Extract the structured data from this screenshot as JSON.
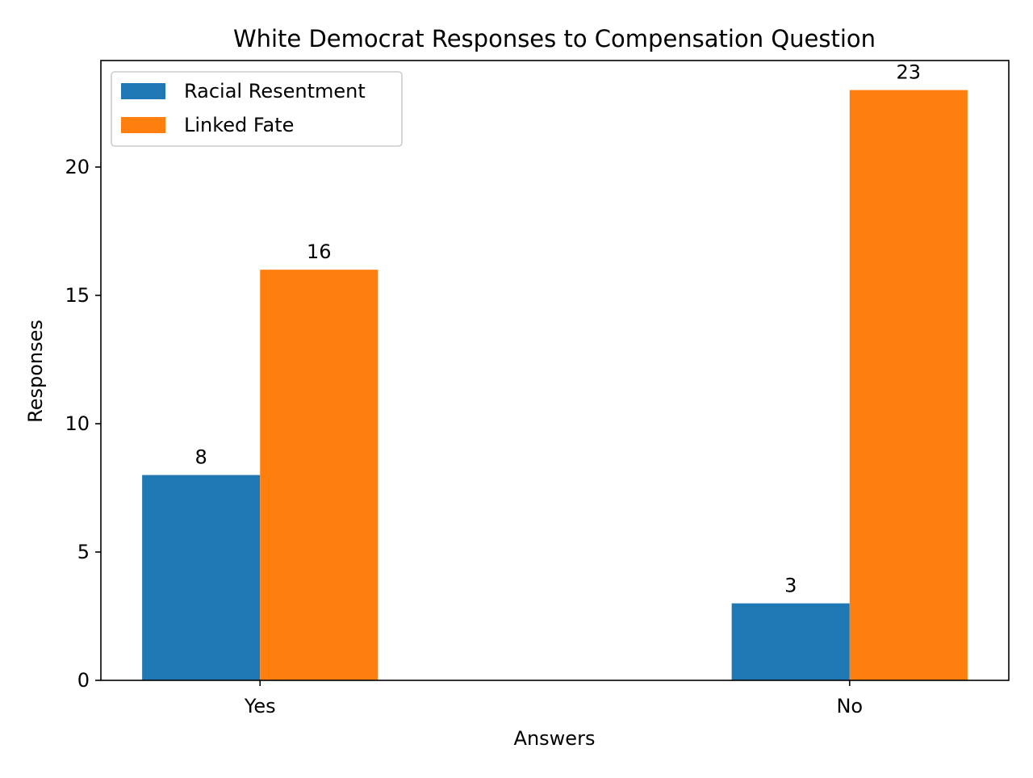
{
  "chart_data": {
    "type": "bar",
    "title": "White Democrat Responses to Compensation Question",
    "xlabel": "Answers",
    "ylabel": "Responses",
    "categories": [
      "Yes",
      "No"
    ],
    "series": [
      {
        "name": "Racial Resentment",
        "values": [
          8,
          3
        ],
        "color": "#1f77b4"
      },
      {
        "name": "Linked Fate",
        "values": [
          16,
          23
        ],
        "color": "#ff7f0e"
      }
    ],
    "ylim": [
      0,
      24.15
    ],
    "yticks": [
      0,
      5,
      10,
      15,
      20
    ],
    "grid": false,
    "legend_position": "top-left"
  }
}
